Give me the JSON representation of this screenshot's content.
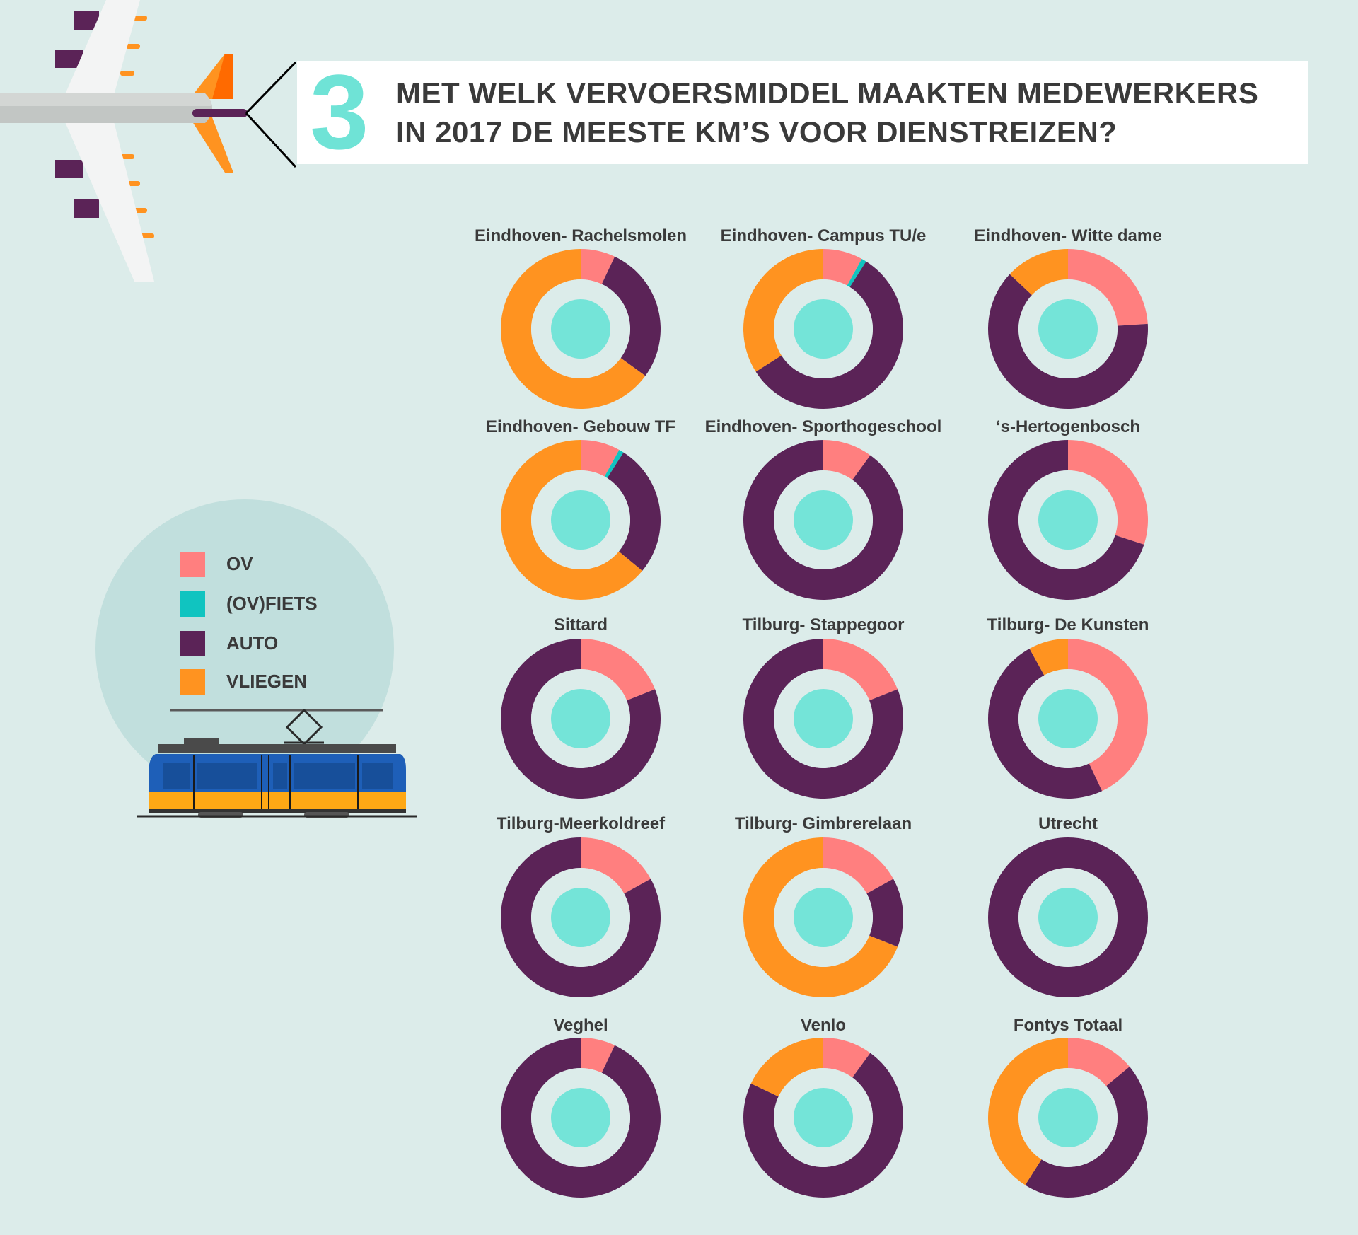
{
  "header": {
    "number": "3",
    "title_line1": "MET WELK VERVOERSMIDDEL MAAKTEN MEDEWERKERS",
    "title_line2": "IN 2017 DE MEESTE KM’S VOOR DIENSTREIZEN?"
  },
  "legend": {
    "items": [
      {
        "label": "OV",
        "color": "#ff7f7f"
      },
      {
        "label": "(OV)FIETS",
        "color": "#10c4c0"
      },
      {
        "label": "AUTO",
        "color": "#5b2357"
      },
      {
        "label": "VLIEGEN",
        "color": "#ff9320"
      }
    ]
  },
  "colors": {
    "ov": "#ff7f7f",
    "fiets": "#10c4c0",
    "auto": "#5b2357",
    "vliegen": "#ff9320",
    "center": "#74e4d8",
    "ring_gap": "#dcecea"
  },
  "chart_data": {
    "type": "pie",
    "title": "MET WELK VERVOERSMIDDEL MAAKTEN MEDEWERKERS IN 2017 DE MEESTE KM’S VOOR DIENSTREIZEN?",
    "series_order": [
      "OV",
      "(OV)FIETS",
      "AUTO",
      "VLIEGEN"
    ],
    "charts": [
      {
        "title": "Eindhoven- Rachelsmolen",
        "values": {
          "OV": 7,
          "(OV)FIETS": 0,
          "AUTO": 28,
          "VLIEGEN": 65
        }
      },
      {
        "title": "Eindhoven- Campus TU/e",
        "values": {
          "OV": 8,
          "(OV)FIETS": 1,
          "AUTO": 57,
          "VLIEGEN": 34
        }
      },
      {
        "title": "Eindhoven- Witte dame",
        "values": {
          "OV": 24,
          "(OV)FIETS": 0,
          "AUTO": 63,
          "VLIEGEN": 13
        }
      },
      {
        "title": "Eindhoven- Gebouw TF",
        "values": {
          "OV": 8,
          "(OV)FIETS": 1,
          "AUTO": 27,
          "VLIEGEN": 64
        }
      },
      {
        "title": "Eindhoven- Sporthogeschool",
        "values": {
          "OV": 10,
          "(OV)FIETS": 0,
          "AUTO": 90,
          "VLIEGEN": 0
        }
      },
      {
        "title": "‘s-Hertogenbosch",
        "values": {
          "OV": 30,
          "(OV)FIETS": 0,
          "AUTO": 70,
          "VLIEGEN": 0
        }
      },
      {
        "title": "Sittard",
        "values": {
          "OV": 19,
          "(OV)FIETS": 0,
          "AUTO": 81,
          "VLIEGEN": 0
        }
      },
      {
        "title": "Tilburg- Stappegoor",
        "values": {
          "OV": 19,
          "(OV)FIETS": 0,
          "AUTO": 81,
          "VLIEGEN": 0
        }
      },
      {
        "title": "Tilburg- De Kunsten",
        "values": {
          "OV": 43,
          "(OV)FIETS": 0,
          "AUTO": 49,
          "VLIEGEN": 8
        }
      },
      {
        "title": "Tilburg-Meerkoldreef",
        "values": {
          "OV": 17,
          "(OV)FIETS": 0,
          "AUTO": 83,
          "VLIEGEN": 0
        }
      },
      {
        "title": "Tilburg- Gimbrerelaan",
        "values": {
          "OV": 17,
          "(OV)FIETS": 0,
          "AUTO": 14,
          "VLIEGEN": 69
        }
      },
      {
        "title": "Utrecht",
        "values": {
          "OV": 0,
          "(OV)FIETS": 0,
          "AUTO": 100,
          "VLIEGEN": 0
        }
      },
      {
        "title": "Veghel",
        "values": {
          "OV": 7,
          "(OV)FIETS": 0,
          "AUTO": 93,
          "VLIEGEN": 0
        }
      },
      {
        "title": "Venlo",
        "values": {
          "OV": 10,
          "(OV)FIETS": 0,
          "AUTO": 72,
          "VLIEGEN": 18
        }
      },
      {
        "title": "Fontys Totaal",
        "values": {
          "OV": 14,
          "(OV)FIETS": 0,
          "AUTO": 45,
          "VLIEGEN": 41
        }
      }
    ]
  }
}
